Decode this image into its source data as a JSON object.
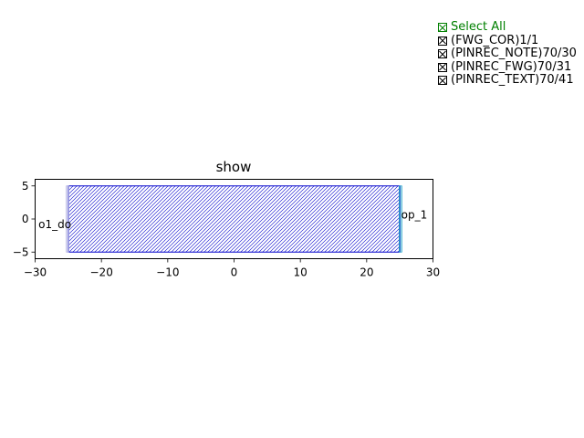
{
  "chart_data": {
    "type": "layout",
    "title": "show",
    "xlabel": "",
    "ylabel": "",
    "xlim": [
      -30,
      30
    ],
    "ylim": [
      -6,
      6
    ],
    "x_ticks": [
      -30,
      -20,
      -10,
      0,
      10,
      20,
      30
    ],
    "y_ticks": [
      -5,
      0,
      5
    ],
    "grid": false,
    "legend_position": "top-right outside",
    "polygons": [
      {
        "layer": "(FWG_COR)1/1",
        "x": [
          -25,
          25,
          25,
          -25
        ],
        "y": [
          -5,
          -5,
          5,
          5
        ],
        "edge_color": "#0000cc",
        "hatch": "////"
      },
      {
        "layer": "(PINREC_FWG)70/31",
        "x": [
          -25.3,
          -24.9,
          -24.9,
          -25.3
        ],
        "y": [
          -5,
          -5,
          5,
          5
        ],
        "edge_color": "#b0b0e0",
        "hatch": "||"
      },
      {
        "layer": "(PINREC_FWG)70/31",
        "x": [
          24.9,
          25.3,
          25.3,
          24.9
        ],
        "y": [
          -5,
          -5,
          5,
          5
        ],
        "edge_color": "#2aa5c8",
        "hatch": "||"
      }
    ],
    "labels": [
      {
        "text": "o1_do",
        "x": -29.5,
        "y": -0.8
      },
      {
        "text": "op_1",
        "x": 25.2,
        "y": 0.6
      }
    ]
  },
  "legend": {
    "select_all": "Select All",
    "select_all_color": "#008000",
    "items": [
      "(FWG_COR)1/1",
      "(PINREC_NOTE)70/30",
      "(PINREC_FWG)70/31",
      "(PINREC_TEXT)70/41"
    ]
  }
}
